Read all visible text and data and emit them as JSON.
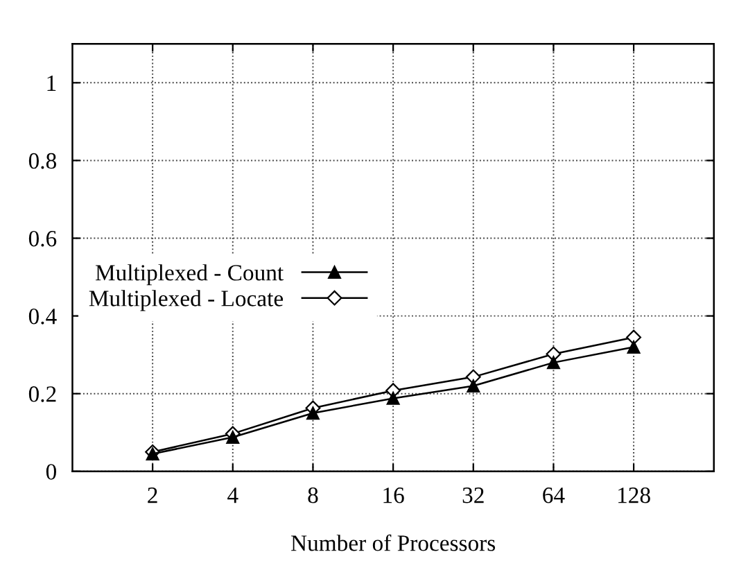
{
  "chart_data": {
    "type": "line",
    "xlabel": "Number of Processors",
    "categories": [
      "2",
      "4",
      "8",
      "16",
      "32",
      "64",
      "128"
    ],
    "series": [
      {
        "name": "Multiplexed - Count",
        "color": "#000000",
        "marker": "triangle",
        "values": [
          0.045,
          0.088,
          0.15,
          0.188,
          0.22,
          0.28,
          0.32
        ]
      },
      {
        "name": "Multiplexed - Locate",
        "color": "#000000",
        "marker": "diamond",
        "values": [
          0.05,
          0.097,
          0.163,
          0.208,
          0.243,
          0.302,
          0.345
        ]
      }
    ],
    "ylim": [
      0,
      1.1
    ],
    "yticks": [
      0,
      0.2,
      0.4,
      0.6,
      0.8,
      1
    ],
    "grid": true,
    "legend": "left",
    "line_style": "solid"
  }
}
